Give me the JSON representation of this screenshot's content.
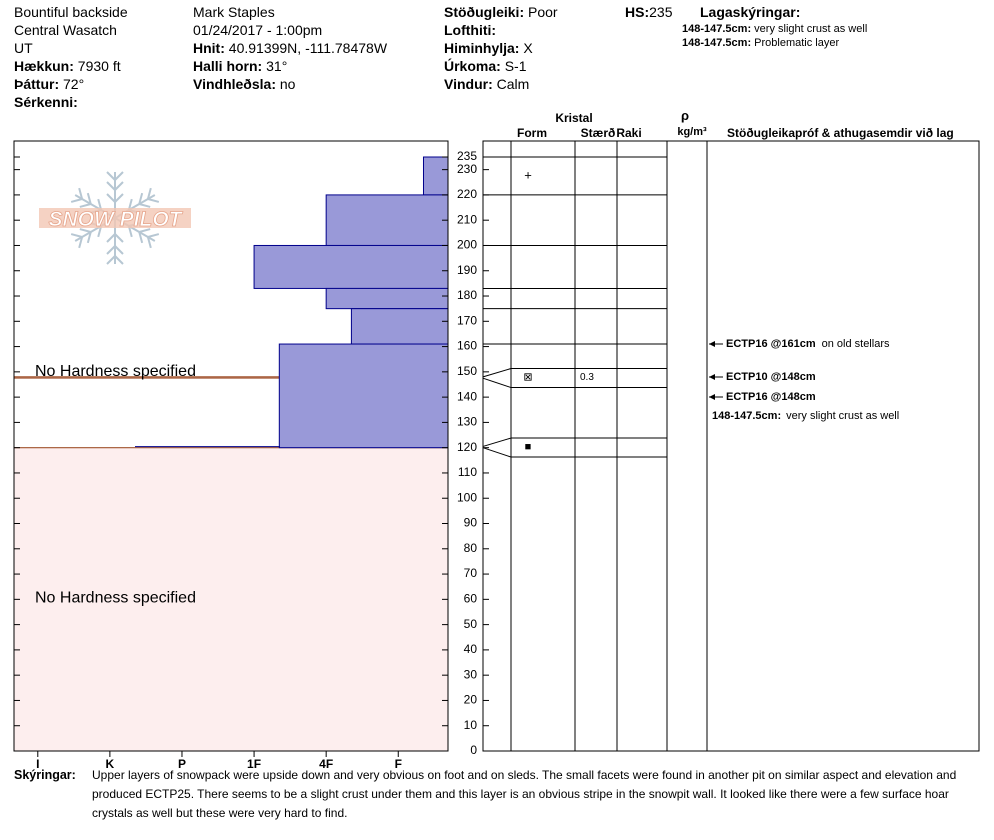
{
  "header": {
    "col1": [
      {
        "value": "Bountiful backside"
      },
      {
        "value": "Central Wasatch"
      },
      {
        "value": "UT"
      },
      {
        "label": "Hækkun:",
        "value": "7930 ft"
      },
      {
        "label": "Þáttur:",
        "value": "72°"
      },
      {
        "label": "Sérkenni:"
      }
    ],
    "col2": [
      {
        "value": "Mark Staples"
      },
      {
        "value": "01/24/2017 - 1:00pm"
      },
      {
        "label": "Hnit:",
        "value": "40.91399N, -111.78478W"
      },
      {
        "label": "Halli horn:",
        "value": "31°"
      },
      {
        "label": "Vindhleðsla:",
        "value": "no"
      }
    ],
    "col3": [
      {
        "label": "Stöðugleiki:",
        "value": "Poor"
      },
      {
        "label": "Lofthiti:"
      },
      {
        "label": "Himinhylja:",
        "value": "X"
      },
      {
        "label": "Úrkoma:",
        "value": "S-1"
      },
      {
        "label": "Vindur:",
        "value": "Calm"
      }
    ],
    "hs": {
      "label": "HS:",
      "value": 235
    },
    "layer_notes_title": "Lagaskýringar:",
    "layer_notes": [
      {
        "label": "148-147.5cm:",
        "value": "very slight crust as well"
      },
      {
        "label": "148-147.5cm:",
        "value": "Problematic layer"
      }
    ]
  },
  "logo": "SNOW PILOT",
  "profile": {
    "depth_lim": [
      0,
      235
    ],
    "depth_ticks": [
      0,
      10,
      20,
      30,
      40,
      50,
      60,
      70,
      80,
      90,
      100,
      110,
      120,
      130,
      140,
      150,
      160,
      170,
      180,
      190,
      200,
      210,
      220,
      230,
      235
    ],
    "hardness_lim": [
      0.31,
      6.33
    ],
    "hardness_ticks": [
      {
        "value": 6,
        "label": "I"
      },
      {
        "value": 5,
        "label": "K"
      },
      {
        "value": 4,
        "label": "P"
      },
      {
        "value": 3,
        "label": "1F"
      },
      {
        "value": 2,
        "label": "4F"
      },
      {
        "value": 1,
        "label": "F"
      }
    ],
    "layers": [
      {
        "top": 235,
        "bottom": 220,
        "hardness": 0.65
      },
      {
        "top": 220,
        "bottom": 200,
        "hardness": 2
      },
      {
        "top": 200,
        "bottom": 183,
        "hardness": 3
      },
      {
        "top": 183,
        "bottom": 175,
        "hardness": 2
      },
      {
        "top": 175,
        "bottom": 161,
        "hardness": 1.65
      },
      {
        "top": 161,
        "bottom": 120,
        "hardness": 2.65
      }
    ],
    "no_hardness": [
      {
        "top": 148,
        "bottom": 147.5,
        "label": "No Hardness specified"
      },
      {
        "top": 120,
        "bottom": 0,
        "label": "No Hardness specified"
      }
    ]
  },
  "crystals": {
    "title": "Kristal",
    "form_header": "Form",
    "size_header": "Stærð",
    "moisture_header": "Raki",
    "density_symbol": "ρ",
    "density_unit": "kg/m³",
    "tests_header": "Stöðugleikapróf & athugasemdir við lag",
    "boundaries": [
      235,
      220,
      200,
      183,
      175,
      161
    ],
    "forms": [
      {
        "top": 235,
        "bottom": 220,
        "form": "+"
      }
    ],
    "thin_layers": [
      {
        "top": 148,
        "bottom": 147.5,
        "form": "⊠",
        "size": "0.3"
      },
      {
        "top": 120.5,
        "bottom": 120,
        "form": "■"
      }
    ],
    "tests": [
      {
        "test": "ECTP16 @161cm",
        "comment": "on old stellars"
      },
      {
        "test": "ECTP10 @148cm"
      },
      {
        "test": "ECTP16 @148cm"
      }
    ],
    "layer_comment": {
      "label": "148-147.5cm:",
      "value": "very slight crust as well"
    }
  },
  "footer": {
    "label": "Skýringar:",
    "text": "Upper layers of snowpack were upside down and very obvious on foot and on sleds. The small facets were found in another pit on similar aspect and elevation and produced ECTP25. There seems to be a slight crust under them and this layer is an obvious stripe in the snowpit wall. It looked like there were a few surface hoar crystals as well but these were very hard to find."
  }
}
